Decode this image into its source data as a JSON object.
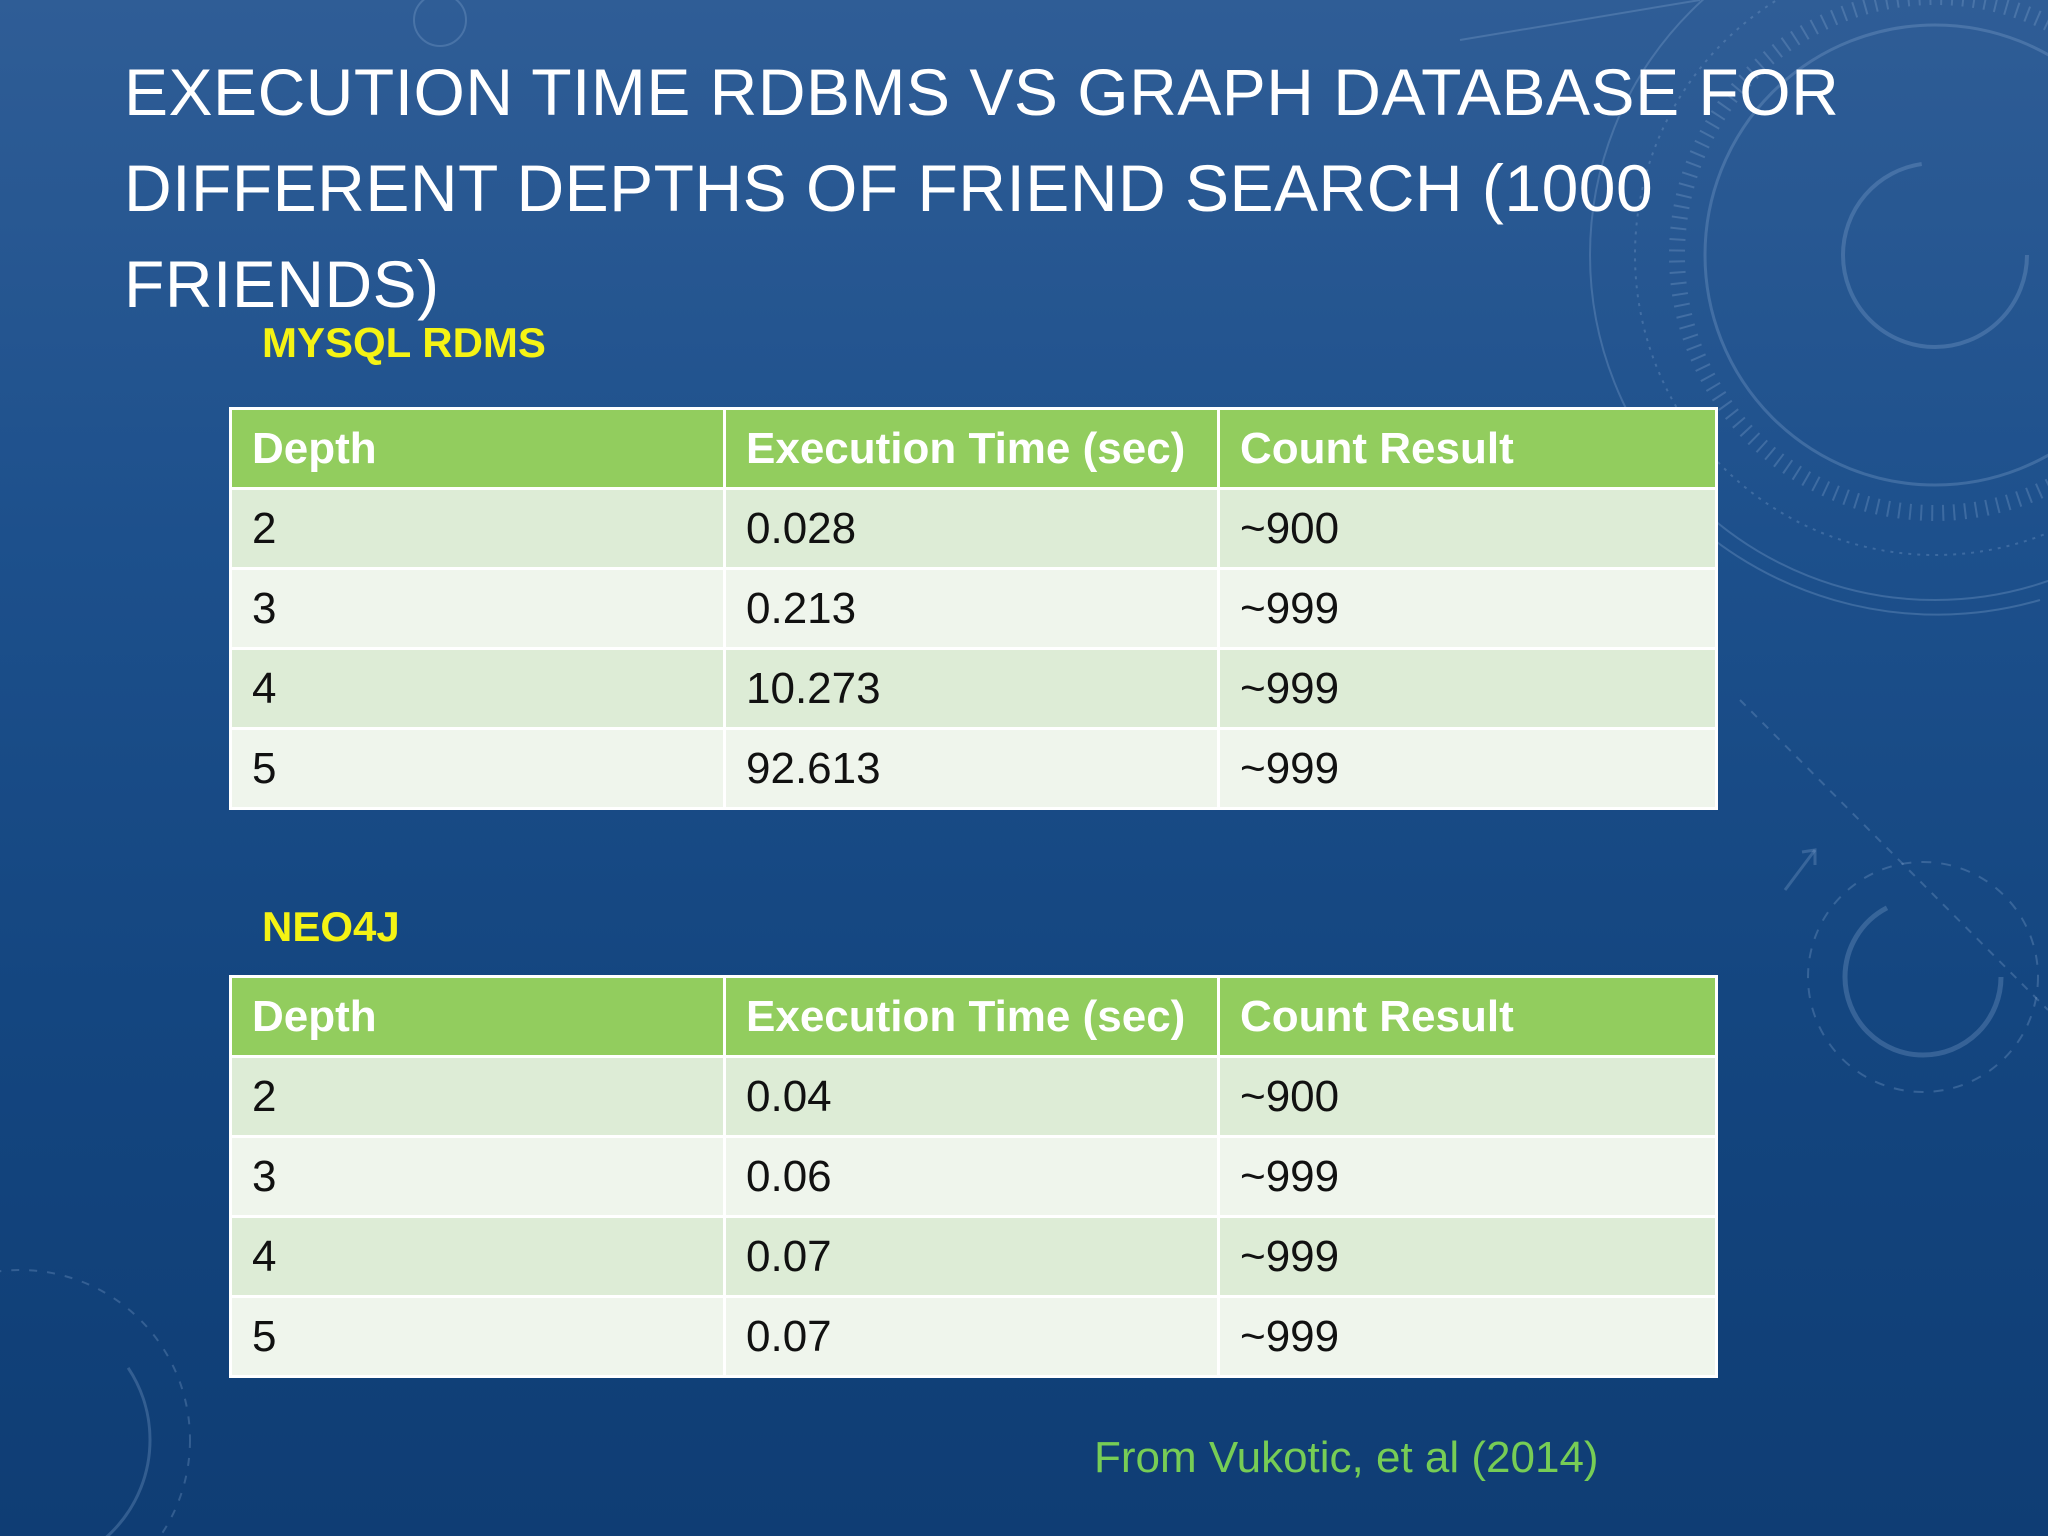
{
  "slide": {
    "title_line1": "EXECUTION TIME RDBMS VS GRAPH DATABASE FOR",
    "title_line2": "DIFFERENT DEPTHS OF FRIEND SEARCH (1000 FRIENDS)",
    "citation": "From Vukotic, et al (2014)"
  },
  "tables": [
    {
      "heading": "MYSQL RDMS",
      "columns": [
        "Depth",
        "Execution Time (sec)",
        "Count Result"
      ],
      "rows": [
        [
          "2",
          "0.028",
          "~900"
        ],
        [
          "3",
          "0.213",
          "~999"
        ],
        [
          "4",
          "10.273",
          "~999"
        ],
        [
          "5",
          "92.613",
          "~999"
        ]
      ]
    },
    {
      "heading": "NEO4J",
      "columns": [
        "Depth",
        "Execution Time (sec)",
        "Count Result"
      ],
      "rows": [
        [
          "2",
          "0.04",
          "~900"
        ],
        [
          "3",
          "0.06",
          "~999"
        ],
        [
          "4",
          "0.07",
          "~999"
        ],
        [
          "5",
          "0.07",
          "~999"
        ]
      ]
    }
  ],
  "colors": {
    "background_top": "#2f5d96",
    "background_bottom": "#0f3d74",
    "section_heading": "#f5f314",
    "table_header": "#92cd5e",
    "row_odd": "#ddecd6",
    "row_even": "#eff5ec",
    "citation": "#77cd55"
  },
  "decorations": [
    "dial-decoration",
    "circular-arrow-decoration"
  ]
}
